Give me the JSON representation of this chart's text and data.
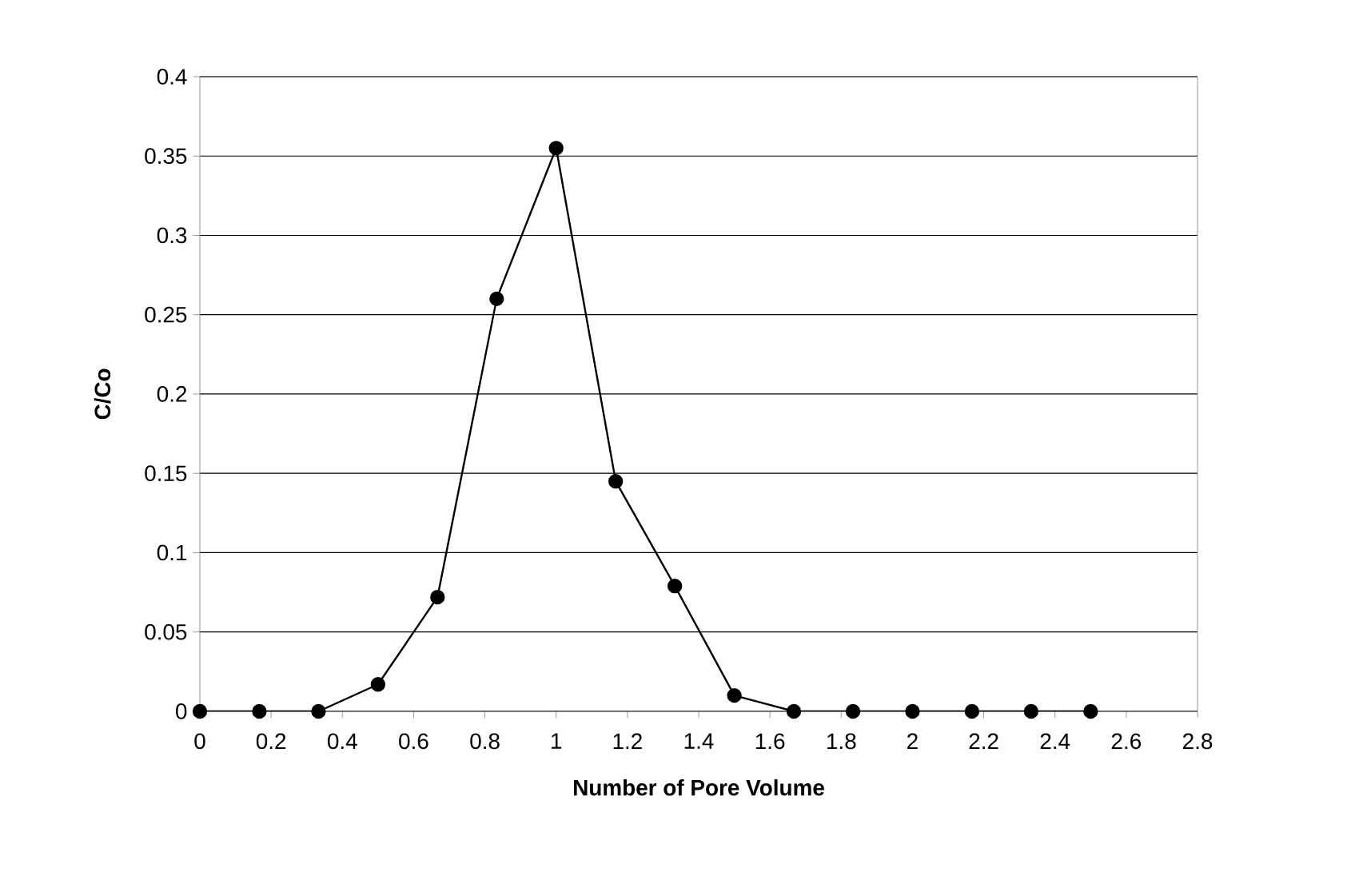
{
  "chart_data": {
    "type": "line",
    "xlabel": "Number of Pore Volume",
    "ylabel": "C/Co",
    "xlim": [
      0,
      2.8
    ],
    "xticks": [
      0,
      0.2,
      0.4,
      0.6,
      0.8,
      1,
      1.2,
      1.4,
      1.6,
      1.8,
      2,
      2.2,
      2.4,
      2.6,
      2.8
    ],
    "ylim": [
      0,
      0.4
    ],
    "yticks": [
      0,
      0.05,
      0.1,
      0.15,
      0.2,
      0.25,
      0.3,
      0.35,
      0.4
    ],
    "grid": "y",
    "marker": "circle",
    "line_style": "solid",
    "series": [
      {
        "color": "#000000",
        "x": [
          0,
          0.167,
          0.333,
          0.5,
          0.667,
          0.833,
          1,
          1.167,
          1.333,
          1.5,
          1.667,
          1.833,
          2,
          2.167,
          2.333,
          2.5
        ],
        "values": [
          0,
          0,
          0,
          0.017,
          0.072,
          0.26,
          0.355,
          0.145,
          0.079,
          0.01,
          0,
          0,
          0,
          0,
          0,
          0
        ]
      }
    ]
  }
}
